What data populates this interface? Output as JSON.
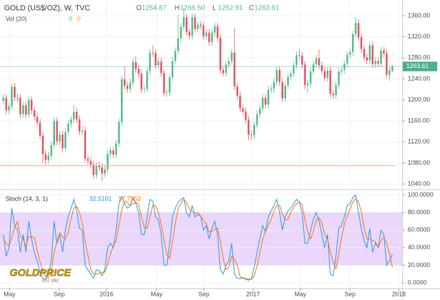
{
  "logo": {
    "text": "GOLDPRICE",
    "tagline": "EST. 2002"
  },
  "chart_data": [
    {
      "type": "candlestick",
      "title": "GOLD (US$/OZ), W, TVC",
      "ohlc_header": [
        {
          "key": "O",
          "label": "1254.87"
        },
        {
          "key": "H",
          "label": "1266.50"
        },
        {
          "key": "L",
          "label": "1252.91"
        },
        {
          "key": "C",
          "label": "1263.61"
        }
      ],
      "volume_header": {
        "label": "Vol (20)",
        "values": [
          0,
          0
        ],
        "colors": [
          "#53b987",
          "#ff9800"
        ]
      },
      "open": [
        1198,
        1204,
        1180,
        1188,
        1225,
        1205,
        1204,
        1173,
        1190,
        1172,
        1200,
        1180,
        1168,
        1157,
        1132,
        1097,
        1086,
        1094,
        1114,
        1160,
        1121,
        1134,
        1108,
        1139,
        1155,
        1163,
        1177,
        1163,
        1140,
        1142,
        1088,
        1084,
        1077,
        1057,
        1075,
        1072,
        1060,
        1068,
        1097,
        1104,
        1096,
        1117,
        1158,
        1239,
        1227,
        1221,
        1233,
        1272,
        1259,
        1250,
        1220,
        1221,
        1255,
        1290,
        1289,
        1266,
        1273,
        1251,
        1213,
        1214,
        1243,
        1274,
        1293,
        1317,
        1339,
        1357,
        1329,
        1322,
        1357,
        1335,
        1343,
        1341,
        1321,
        1328,
        1310,
        1328,
        1340,
        1318,
        1257,
        1251,
        1267,
        1274,
        1290,
        1226,
        1208,
        1184,
        1178,
        1162,
        1134,
        1133,
        1152,
        1173,
        1184,
        1204,
        1191,
        1219,
        1221,
        1234,
        1257,
        1234,
        1203,
        1227,
        1244,
        1250,
        1266,
        1285,
        1284,
        1267,
        1228,
        1231,
        1254,
        1268,
        1279,
        1266,
        1255,
        1242,
        1256,
        1212,
        1209,
        1228,
        1254,
        1257,
        1269,
        1286,
        1291,
        1325,
        1346,
        1319,
        1297,
        1281,
        1275,
        1304,
        1268,
        1274,
        1269,
        1294,
        1288,
        1248,
        1254.87
      ],
      "high": [
        1211,
        1211,
        1195,
        1232,
        1232,
        1212,
        1211,
        1197,
        1197,
        1207,
        1207,
        1187,
        1175,
        1164,
        1139,
        1104,
        1101,
        1121,
        1167,
        1167,
        1141,
        1141,
        1146,
        1162,
        1170,
        1191,
        1184,
        1170,
        1149,
        1149,
        1095,
        1091,
        1084,
        1082,
        1082,
        1079,
        1075,
        1104,
        1111,
        1111,
        1124,
        1165,
        1246,
        1263,
        1234,
        1240,
        1279,
        1283,
        1266,
        1257,
        1228,
        1262,
        1297,
        1304,
        1296,
        1280,
        1280,
        1258,
        1221,
        1250,
        1281,
        1300,
        1362,
        1346,
        1375,
        1364,
        1336,
        1364,
        1364,
        1350,
        1350,
        1348,
        1335,
        1335,
        1335,
        1347,
        1347,
        1325,
        1264,
        1274,
        1281,
        1297,
        1337,
        1233,
        1215,
        1191,
        1185,
        1169,
        1141,
        1159,
        1180,
        1191,
        1211,
        1211,
        1226,
        1228,
        1241,
        1264,
        1264,
        1241,
        1234,
        1251,
        1257,
        1273,
        1292,
        1296,
        1291,
        1274,
        1238,
        1261,
        1275,
        1286,
        1296,
        1273,
        1262,
        1263,
        1263,
        1219,
        1235,
        1261,
        1264,
        1276,
        1293,
        1298,
        1332,
        1358,
        1353,
        1326,
        1304,
        1288,
        1311,
        1311,
        1281,
        1281,
        1301,
        1301,
        1295,
        1263,
        1266.5
      ],
      "low": [
        1191,
        1173,
        1173,
        1181,
        1198,
        1197,
        1166,
        1166,
        1165,
        1165,
        1173,
        1161,
        1150,
        1125,
        1080,
        1077,
        1079,
        1087,
        1107,
        1114,
        1114,
        1101,
        1101,
        1132,
        1148,
        1156,
        1156,
        1133,
        1133,
        1081,
        1077,
        1070,
        1050,
        1050,
        1065,
        1046,
        1053,
        1061,
        1090,
        1089,
        1089,
        1110,
        1151,
        1220,
        1214,
        1214,
        1226,
        1252,
        1243,
        1213,
        1213,
        1214,
        1248,
        1282,
        1259,
        1259,
        1244,
        1206,
        1206,
        1207,
        1236,
        1267,
        1286,
        1310,
        1332,
        1322,
        1315,
        1315,
        1328,
        1328,
        1334,
        1314,
        1314,
        1303,
        1303,
        1321,
        1311,
        1250,
        1244,
        1244,
        1260,
        1267,
        1219,
        1201,
        1177,
        1171,
        1155,
        1124,
        1123,
        1126,
        1145,
        1166,
        1177,
        1184,
        1184,
        1212,
        1214,
        1227,
        1227,
        1196,
        1196,
        1220,
        1237,
        1243,
        1259,
        1277,
        1260,
        1221,
        1214,
        1224,
        1247,
        1261,
        1259,
        1248,
        1235,
        1235,
        1205,
        1202,
        1202,
        1221,
        1247,
        1250,
        1262,
        1279,
        1284,
        1318,
        1312,
        1290,
        1274,
        1268,
        1268,
        1261,
        1261,
        1262,
        1262,
        1281,
        1241,
        1236,
        1252.91
      ],
      "close": [
        1204,
        1180,
        1188,
        1225,
        1205,
        1204,
        1173,
        1190,
        1172,
        1200,
        1180,
        1168,
        1157,
        1132,
        1097,
        1086,
        1094,
        1114,
        1160,
        1121,
        1134,
        1108,
        1139,
        1155,
        1163,
        1177,
        1163,
        1140,
        1142,
        1088,
        1084,
        1077,
        1057,
        1075,
        1072,
        1060,
        1068,
        1097,
        1104,
        1096,
        1117,
        1158,
        1239,
        1227,
        1221,
        1233,
        1272,
        1259,
        1250,
        1220,
        1221,
        1255,
        1290,
        1289,
        1266,
        1273,
        1251,
        1213,
        1214,
        1243,
        1274,
        1293,
        1317,
        1339,
        1357,
        1329,
        1322,
        1357,
        1335,
        1343,
        1341,
        1321,
        1328,
        1310,
        1328,
        1340,
        1318,
        1257,
        1251,
        1267,
        1274,
        1290,
        1226,
        1208,
        1184,
        1178,
        1162,
        1134,
        1133,
        1152,
        1173,
        1184,
        1204,
        1191,
        1219,
        1221,
        1234,
        1257,
        1234,
        1203,
        1227,
        1244,
        1250,
        1266,
        1285,
        1284,
        1267,
        1228,
        1231,
        1254,
        1268,
        1279,
        1266,
        1255,
        1242,
        1256,
        1212,
        1209,
        1228,
        1254,
        1257,
        1269,
        1286,
        1291,
        1325,
        1346,
        1319,
        1297,
        1281,
        1275,
        1304,
        1268,
        1274,
        1269,
        1294,
        1288,
        1248,
        1256,
        1263.61
      ],
      "up_color": "#53b987",
      "down_color": "#eb4d5c",
      "xlim": [
        -1.2,
        141.5
      ],
      "ylim": [
        1031,
        1390
      ],
      "yticks": [
        {
          "value": 1040,
          "label": "1040.00"
        },
        {
          "value": 1080,
          "label": "1080.00"
        },
        {
          "value": 1120,
          "label": "1120.00"
        },
        {
          "value": 1160,
          "label": "1160.00"
        },
        {
          "value": 1200,
          "label": "1200.00"
        },
        {
          "value": 1240,
          "label": "1240.00"
        },
        {
          "value": 1280,
          "label": "1280.00"
        },
        {
          "value": 1320,
          "label": "1320.00"
        },
        {
          "value": 1360,
          "label": "1360.00"
        }
      ],
      "horizontal_line": {
        "value": 1075,
        "color": "#f5b08a"
      },
      "last_price_color": "#4caf8f",
      "grid": true
    },
    {
      "type": "line",
      "title": "Stoch (14, 3, 1)",
      "series": [
        {
          "color": "#2196f3",
          "values": [
            55,
            30,
            40,
            85,
            65,
            60,
            35,
            55,
            35,
            70,
            50,
            35,
            25,
            12,
            5,
            4,
            10,
            25,
            70,
            45,
            55,
            35,
            60,
            75,
            85,
            95,
            82,
            62,
            60,
            20,
            15,
            10,
            5,
            15,
            14,
            8,
            15,
            40,
            45,
            40,
            60,
            90,
            98,
            90,
            85,
            88,
            97,
            90,
            80,
            55,
            55,
            75,
            95,
            93,
            75,
            72,
            55,
            20,
            20,
            45,
            75,
            85,
            92,
            95,
            97,
            80,
            75,
            88,
            75,
            78,
            76,
            60,
            65,
            50,
            62,
            70,
            55,
            15,
            10,
            20,
            25,
            45,
            10,
            5,
            5,
            6,
            4,
            3,
            4,
            18,
            35,
            50,
            65,
            58,
            75,
            82,
            88,
            95,
            80,
            60,
            75,
            82,
            85,
            90,
            95,
            92,
            80,
            45,
            45,
            60,
            72,
            80,
            70,
            55,
            40,
            55,
            10,
            8,
            30,
            62,
            65,
            75,
            88,
            90,
            97,
            100,
            80,
            62,
            48,
            40,
            62,
            35,
            45,
            40,
            60,
            55,
            20,
            25,
            32.5101
          ]
        },
        {
          "color": "#ff6d00",
          "values": [
            50,
            45,
            42,
            52,
            63,
            70,
            53,
            50,
            42,
            53,
            52,
            52,
            37,
            24,
            14,
            7,
            6,
            13,
            35,
            47,
            57,
            52,
            50,
            57,
            73,
            85,
            87,
            80,
            68,
            47,
            32,
            15,
            10,
            10,
            11,
            12,
            12,
            21,
            33,
            42,
            48,
            65,
            83,
            93,
            91,
            88,
            90,
            92,
            89,
            75,
            63,
            62,
            75,
            88,
            88,
            80,
            67,
            49,
            32,
            28,
            47,
            68,
            84,
            91,
            95,
            91,
            84,
            81,
            79,
            80,
            76,
            71,
            67,
            58,
            59,
            61,
            62,
            47,
            27,
            15,
            18,
            30,
            27,
            20,
            7,
            5,
            5,
            4,
            4,
            8,
            19,
            34,
            50,
            58,
            66,
            72,
            82,
            88,
            88,
            78,
            72,
            72,
            80,
            86,
            90,
            92,
            89,
            72,
            57,
            50,
            59,
            71,
            74,
            68,
            55,
            50,
            35,
            24,
            16,
            33,
            52,
            67,
            76,
            84,
            92,
            96,
            92,
            81,
            63,
            50,
            50,
            48,
            47,
            40,
            48,
            52,
            45,
            33,
            17.7553
          ]
        }
      ],
      "xlim": [
        -1.2,
        141.5
      ],
      "ylim": [
        -6.25,
        104.7
      ],
      "yticks": [
        {
          "value": 0,
          "label": "0.0000"
        },
        {
          "value": 20,
          "label": "20.0000"
        },
        {
          "value": 40,
          "label": "40.0000"
        },
        {
          "value": 60,
          "label": "60.0000"
        },
        {
          "value": 80,
          "label": "80.0000"
        },
        {
          "value": 100,
          "label": "100.0000"
        }
      ],
      "band": [
        20,
        80
      ],
      "band_color": "#e6cdfb",
      "xticks": [
        {
          "value": 2.2,
          "label": "May"
        },
        {
          "value": 19.8,
          "label": "Sep"
        },
        {
          "value": 36.6,
          "label": "2016"
        },
        {
          "value": 54.4,
          "label": "May"
        },
        {
          "value": 71.2,
          "label": "Sep"
        },
        {
          "value": 88.6,
          "label": "2017"
        },
        {
          "value": 105.4,
          "label": "May"
        },
        {
          "value": 123,
          "label": "Sep"
        },
        {
          "value": 140.3,
          "label": "2018"
        }
      ],
      "grid": true
    }
  ]
}
